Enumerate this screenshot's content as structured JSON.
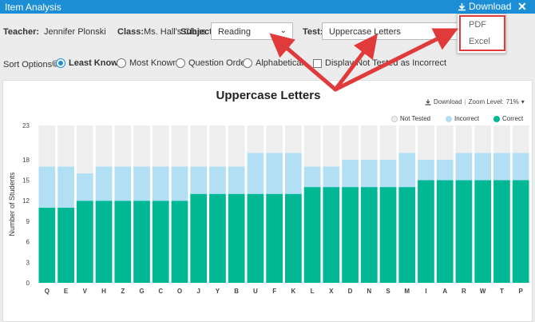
{
  "window": {
    "title": "Item Analysis",
    "download_label": "Download"
  },
  "download_menu": {
    "options": [
      "PDF",
      "Excel"
    ]
  },
  "filters": {
    "teacher_label": "Teacher:",
    "teacher_value": "Jennifer Plonski",
    "class_label": "Class:",
    "class_value": "Ms. Hall's Class",
    "subject_label": "Subject:",
    "subject_value": "Reading",
    "test_label": "Test:",
    "test_value": "Uppercase Letters"
  },
  "sort": {
    "label": "Sort Options",
    "options": [
      "Least Known",
      "Most Known",
      "Question Order",
      "Alphabetical"
    ],
    "selected": "Least Known",
    "checkbox_label": "Display Not Tested as Incorrect"
  },
  "chart_tools": {
    "download": "Download",
    "zoom": "Zoom Level:",
    "zoom_value": "71%"
  },
  "legend": {
    "not_tested": "Not Tested",
    "incorrect": "Incorrect",
    "correct": "Correct"
  },
  "colors": {
    "correct": "#00b894",
    "incorrect": "#b3dff5",
    "not_tested": "#eeeeee",
    "accent": "#1c8ed6",
    "highlight": "#e03a3a"
  },
  "chart_data": {
    "type": "bar",
    "stacked": true,
    "title": "Uppercase Letters",
    "xlabel": "",
    "ylabel": "Number of Students",
    "ylim": [
      0,
      23
    ],
    "yticks": [
      0,
      3,
      6,
      9,
      12,
      15,
      18,
      23
    ],
    "categories": [
      "Q",
      "E",
      "V",
      "H",
      "Z",
      "G",
      "C",
      "O",
      "J",
      "Y",
      "B",
      "U",
      "F",
      "K",
      "L",
      "X",
      "D",
      "N",
      "S",
      "M",
      "I",
      "A",
      "R",
      "W",
      "T",
      "P"
    ],
    "series": [
      {
        "name": "Correct",
        "values": [
          11,
          11,
          12,
          12,
          12,
          12,
          12,
          12,
          13,
          13,
          13,
          13,
          13,
          13,
          14,
          14,
          14,
          14,
          14,
          14,
          15,
          15,
          15,
          15,
          15,
          15
        ]
      },
      {
        "name": "Incorrect",
        "values": [
          6,
          6,
          4,
          5,
          5,
          5,
          5,
          5,
          4,
          4,
          4,
          6,
          6,
          6,
          3,
          3,
          4,
          4,
          4,
          5,
          3,
          3,
          4,
          4,
          4,
          4
        ]
      },
      {
        "name": "Not Tested",
        "values": [
          6,
          6,
          7,
          6,
          6,
          6,
          6,
          6,
          6,
          6,
          6,
          4,
          4,
          4,
          6,
          6,
          5,
          5,
          5,
          4,
          5,
          5,
          4,
          4,
          4,
          4
        ]
      }
    ]
  }
}
